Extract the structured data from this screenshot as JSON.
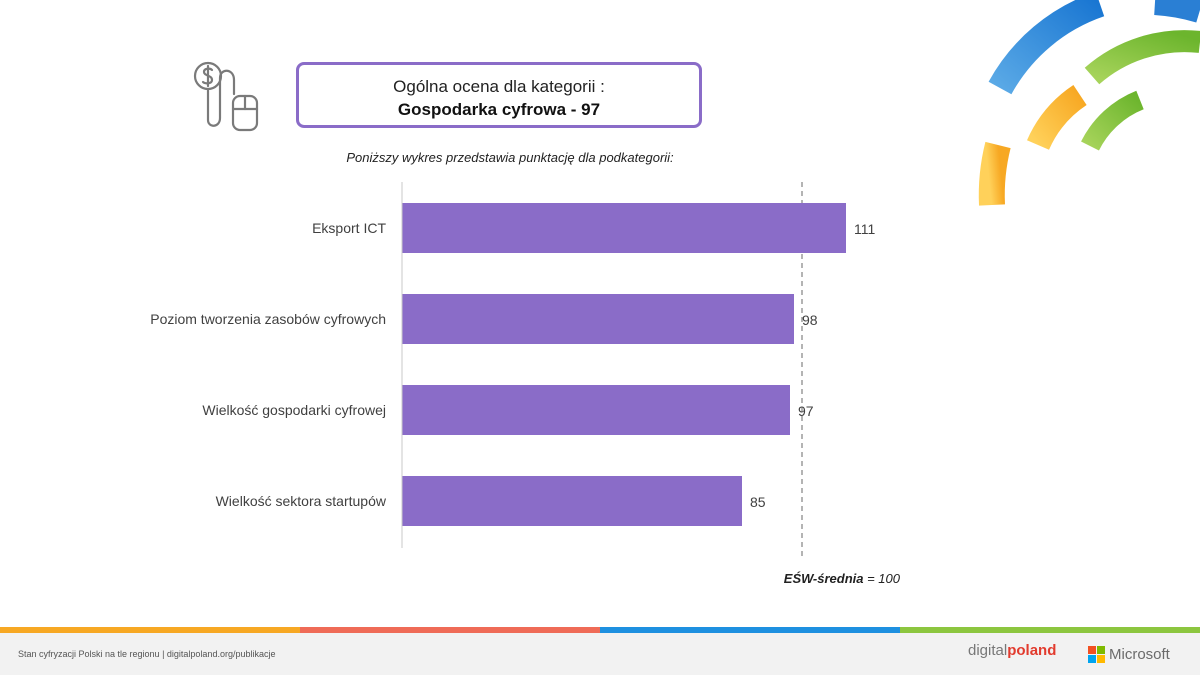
{
  "header": {
    "title_line1": "Ogólna ocena dla kategorii :",
    "title_line2": "Gospodarka cyfrowa - 97",
    "subtitle": "Poniższy wykres przedstawia punktację dla podkategorii:"
  },
  "chart_data": {
    "type": "bar",
    "orientation": "horizontal",
    "categories": [
      "Eksport ICT",
      "Poziom tworzenia zasobów cyfrowych",
      "Wielkość gospodarki cyfrowej",
      "Wielkość sektora startupów"
    ],
    "values": [
      111,
      98,
      97,
      85
    ],
    "reference_line": 100,
    "bar_color": "#8a6cc8",
    "xlim": [
      0,
      120
    ],
    "grid": false,
    "legend": "none"
  },
  "avg_note": {
    "label": "EŚW-średnia",
    "value_text": " = 100"
  },
  "footer": {
    "text": "Stan cyfryzacji Polski na tle regionu | digitalpoland.org/publikacje",
    "digitalpoland_light": "digital",
    "digitalpoland_bold": "poland",
    "microsoft": "Microsoft"
  },
  "colors": {
    "accent": "#8a6cc8",
    "stripe": [
      "#f7a823",
      "#ef6b57",
      "#1e90e0",
      "#8cc63f"
    ],
    "ms_logo": [
      "#f25022",
      "#7fba00",
      "#00a4ef",
      "#ffb900"
    ]
  },
  "icons": {
    "header_icon": "money-mouse-icon",
    "decoration": "colored-arcs"
  }
}
